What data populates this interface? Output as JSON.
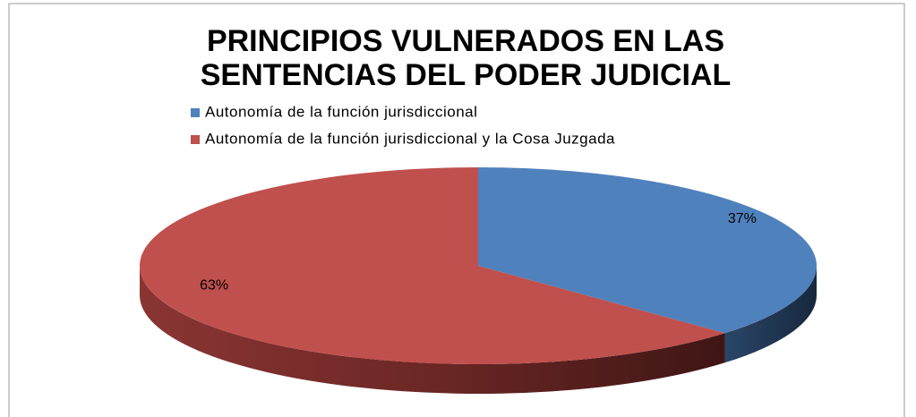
{
  "chart_data": {
    "type": "pie",
    "title": [
      "PRINCIPIOS VULNERADOS EN  LAS",
      "SENTENCIAS DEL PODER JUDICIAL"
    ],
    "categories": [
      "Autonomía de la función jurisdiccional",
      "Autonomía de la función jurisdiccional y la Cosa Juzgada"
    ],
    "values": [
      37,
      63
    ],
    "value_labels": [
      "37%",
      "63%"
    ],
    "colors": [
      "#4f81bd",
      "#c0504d"
    ],
    "legend": "top"
  }
}
